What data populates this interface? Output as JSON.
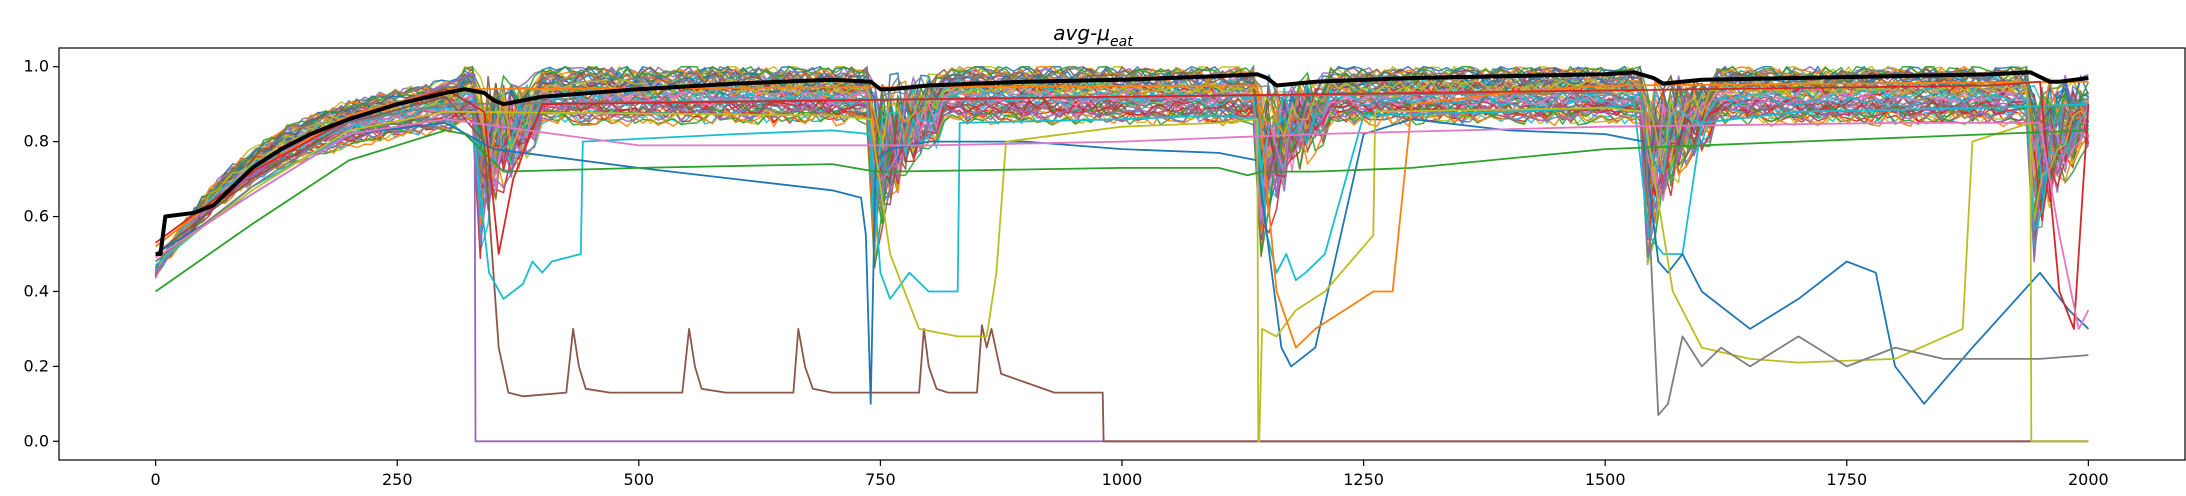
{
  "chart_data": {
    "type": "line",
    "title": "avg-μ",
    "title_subscript": "eat",
    "xlabel": "",
    "ylabel": "",
    "xlim": [
      -100,
      2100
    ],
    "ylim": [
      -0.05,
      1.05
    ],
    "xticks": [
      0,
      250,
      500,
      750,
      1000,
      1250,
      1500,
      1750,
      2000
    ],
    "yticks": [
      0.0,
      0.2,
      0.4,
      0.6,
      0.8,
      1.0
    ],
    "xtick_labels": [
      "0",
      "250",
      "500",
      "750",
      "1000",
      "1250",
      "1500",
      "1750",
      "2000"
    ],
    "ytick_labels": [
      "0.0",
      "0.2",
      "0.4",
      "0.6",
      "0.8",
      "1.0"
    ],
    "grid": false,
    "legend": "none",
    "note_many_individual_runs": true,
    "series": [
      {
        "color": "#000000",
        "width": 4,
        "x": [
          0,
          5,
          10,
          40,
          60,
          80,
          100,
          130,
          160,
          200,
          250,
          300,
          320,
          340,
          350,
          360,
          400,
          500,
          600,
          700,
          740,
          750,
          760,
          800,
          900,
          1000,
          1100,
          1140,
          1150,
          1160,
          1200,
          1300,
          1400,
          1500,
          1530,
          1550,
          1560,
          1600,
          1700,
          1800,
          1900,
          1940,
          1960,
          1970,
          2000
        ],
        "values": [
          0.5,
          0.5,
          0.6,
          0.61,
          0.63,
          0.68,
          0.73,
          0.78,
          0.82,
          0.86,
          0.9,
          0.93,
          0.94,
          0.93,
          0.91,
          0.9,
          0.92,
          0.94,
          0.955,
          0.965,
          0.96,
          0.94,
          0.94,
          0.95,
          0.96,
          0.965,
          0.975,
          0.98,
          0.97,
          0.95,
          0.96,
          0.97,
          0.975,
          0.98,
          0.985,
          0.97,
          0.955,
          0.965,
          0.97,
          0.975,
          0.98,
          0.985,
          0.96,
          0.96,
          0.97
        ]
      },
      {
        "color": "#9467bd",
        "width": 1.8,
        "x": [
          0,
          50,
          150,
          250,
          300,
          325,
          330,
          331,
          500,
          740,
          741,
          2000
        ],
        "values": [
          0.45,
          0.62,
          0.8,
          0.9,
          0.95,
          0.98,
          0.98,
          0.0,
          0.0,
          0.0,
          0.0,
          0.0
        ]
      },
      {
        "color": "#8c564b",
        "width": 1.8,
        "x": [
          0,
          100,
          200,
          300,
          340,
          355,
          365,
          380,
          425,
          432,
          438,
          445,
          470,
          545,
          552,
          558,
          565,
          590,
          660,
          665,
          672,
          680,
          700,
          740,
          745,
          755,
          770,
          790,
          795,
          800,
          808,
          820,
          850,
          855,
          860,
          865,
          875,
          930,
          980,
          981,
          2000
        ],
        "values": [
          0.5,
          0.7,
          0.85,
          0.92,
          0.8,
          0.25,
          0.13,
          0.12,
          0.13,
          0.3,
          0.2,
          0.14,
          0.13,
          0.13,
          0.3,
          0.2,
          0.14,
          0.13,
          0.13,
          0.3,
          0.2,
          0.14,
          0.13,
          0.13,
          0.13,
          0.13,
          0.13,
          0.13,
          0.3,
          0.2,
          0.14,
          0.13,
          0.13,
          0.31,
          0.25,
          0.3,
          0.18,
          0.13,
          0.13,
          0.0,
          0.0
        ]
      },
      {
        "color": "#17becf",
        "width": 1.8,
        "x": [
          0,
          100,
          200,
          300,
          330,
          345,
          360,
          380,
          390,
          400,
          410,
          440,
          442,
          600,
          700,
          740,
          750,
          760,
          780,
          800,
          830,
          832,
          1000,
          1100,
          1140,
          1150,
          1160,
          1170,
          1180,
          1190,
          1210,
          1250,
          1400,
          1500,
          1530,
          1545,
          1560,
          1580,
          1600,
          1700,
          1900,
          2000
        ],
        "values": [
          0.47,
          0.68,
          0.82,
          0.86,
          0.8,
          0.45,
          0.38,
          0.42,
          0.48,
          0.45,
          0.48,
          0.5,
          0.8,
          0.82,
          0.83,
          0.82,
          0.45,
          0.38,
          0.45,
          0.4,
          0.4,
          0.85,
          0.86,
          0.87,
          0.86,
          0.55,
          0.45,
          0.5,
          0.43,
          0.45,
          0.5,
          0.87,
          0.88,
          0.89,
          0.9,
          0.55,
          0.5,
          0.5,
          0.85,
          0.88,
          0.89,
          0.9
        ]
      },
      {
        "color": "#1f77b4",
        "width": 1.8,
        "x": [
          0,
          100,
          200,
          300,
          350,
          500,
          600,
          700,
          730,
          735,
          740,
          745,
          760,
          800,
          900,
          1000,
          1100,
          1140,
          1155,
          1165,
          1175,
          1185,
          1200,
          1250,
          1300,
          1400,
          1500,
          1540,
          1555,
          1565,
          1580,
          1600,
          1650,
          1700,
          1750,
          1780,
          1800,
          1830,
          1880,
          1950,
          1980,
          2000
        ],
        "values": [
          0.5,
          0.66,
          0.82,
          0.85,
          0.78,
          0.73,
          0.7,
          0.67,
          0.65,
          0.55,
          0.1,
          0.75,
          0.78,
          0.8,
          0.8,
          0.78,
          0.77,
          0.75,
          0.45,
          0.25,
          0.2,
          0.22,
          0.25,
          0.82,
          0.86,
          0.83,
          0.82,
          0.8,
          0.48,
          0.45,
          0.5,
          0.4,
          0.3,
          0.38,
          0.48,
          0.45,
          0.2,
          0.1,
          0.25,
          0.45,
          0.35,
          0.3
        ]
      },
      {
        "color": "#bcbd22",
        "width": 1.8,
        "x": [
          0,
          100,
          200,
          300,
          700,
          740,
          760,
          790,
          830,
          860,
          870,
          880,
          1000,
          1100,
          1140,
          1141,
          1142,
          1145,
          1160,
          1180,
          1210,
          1260,
          1262,
          1500,
          1540,
          1570,
          1600,
          1650,
          1700,
          1800,
          1870,
          1880,
          1940,
          1941,
          2000
        ],
        "values": [
          0.48,
          0.67,
          0.83,
          0.88,
          0.87,
          0.86,
          0.5,
          0.3,
          0.28,
          0.28,
          0.45,
          0.8,
          0.84,
          0.85,
          0.86,
          0.0,
          0.0,
          0.3,
          0.28,
          0.35,
          0.4,
          0.55,
          0.88,
          0.89,
          0.88,
          0.4,
          0.25,
          0.22,
          0.21,
          0.22,
          0.3,
          0.8,
          0.85,
          0.0,
          0.0
        ]
      },
      {
        "color": "#7f7f7f",
        "width": 1.8,
        "x": [
          0,
          100,
          200,
          300,
          1000,
          1500,
          1540,
          1555,
          1565,
          1580,
          1600,
          1620,
          1650,
          1700,
          1750,
          1800,
          1850,
          1900,
          1950,
          2000
        ],
        "values": [
          0.48,
          0.68,
          0.85,
          0.9,
          0.92,
          0.93,
          0.9,
          0.07,
          0.1,
          0.28,
          0.2,
          0.25,
          0.2,
          0.28,
          0.2,
          0.25,
          0.22,
          0.22,
          0.22,
          0.23
        ]
      },
      {
        "color": "#2ca02c",
        "width": 1.8,
        "x": [
          0,
          100,
          200,
          300,
          320,
          360,
          500,
          700,
          745,
          760,
          1000,
          1100,
          1130,
          1145,
          1200,
          1300,
          1500,
          1700,
          1900,
          2000
        ],
        "values": [
          0.4,
          0.58,
          0.75,
          0.83,
          0.82,
          0.72,
          0.73,
          0.74,
          0.72,
          0.72,
          0.73,
          0.73,
          0.71,
          0.72,
          0.72,
          0.73,
          0.78,
          0.8,
          0.82,
          0.83
        ]
      },
      {
        "color": "#ff7f0e",
        "width": 1.8,
        "x": [
          0,
          100,
          200,
          300,
          1140,
          1160,
          1180,
          1200,
          1230,
          1260,
          1280,
          1300,
          1400,
          1500,
          2000
        ],
        "values": [
          0.52,
          0.72,
          0.87,
          0.94,
          0.95,
          0.4,
          0.25,
          0.3,
          0.35,
          0.4,
          0.4,
          0.9,
          0.93,
          0.95,
          0.96
        ]
      },
      {
        "color": "#d62728",
        "width": 1.8,
        "x": [
          0,
          100,
          200,
          300,
          340,
          355,
          370,
          400,
          1900,
          1950,
          1970,
          1985,
          2000
        ],
        "values": [
          0.53,
          0.72,
          0.86,
          0.94,
          0.88,
          0.5,
          0.7,
          0.9,
          0.95,
          0.96,
          0.4,
          0.3,
          0.9
        ]
      },
      {
        "color": "#e377c2",
        "width": 1.8,
        "x": [
          0,
          100,
          200,
          300,
          500,
          800,
          1000,
          1200,
          1500,
          1800,
          1950,
          1970,
          1990,
          2000
        ],
        "values": [
          0.49,
          0.66,
          0.82,
          0.86,
          0.79,
          0.79,
          0.8,
          0.82,
          0.84,
          0.85,
          0.85,
          0.55,
          0.3,
          0.35
        ]
      }
    ]
  }
}
